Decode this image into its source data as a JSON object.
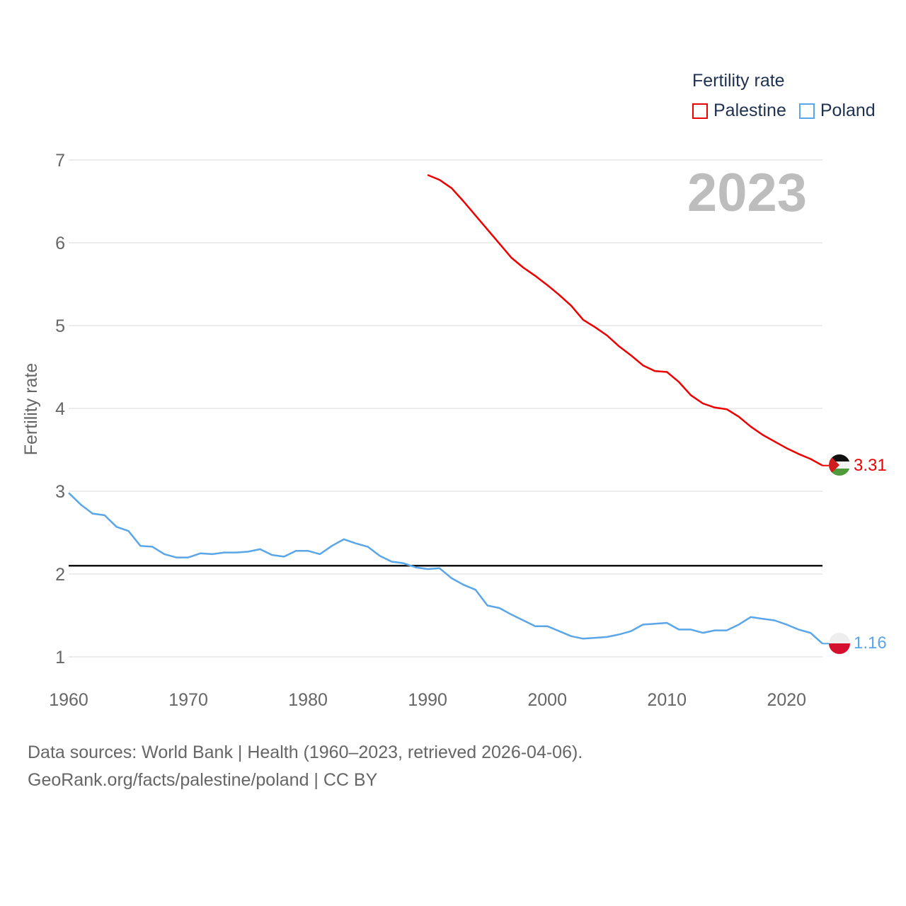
{
  "legend": {
    "title": "Fertility rate",
    "items": [
      {
        "label": "Palestine",
        "color": "#ee0000"
      },
      {
        "label": "Poland",
        "color": "#5aa6e8"
      }
    ]
  },
  "source": {
    "line1": "Data sources: World Bank | Health (1960–2023, retrieved 2026-04-06).",
    "line2": "GeoRank.org/facts/palestine/poland | CC BY"
  },
  "chart_data": {
    "type": "line",
    "title": "Fertility rate",
    "year_label": "2023",
    "ylabel": "Fertility rate",
    "xlabel": "",
    "xlim": [
      1960,
      2023
    ],
    "ylim": [
      0.8,
      7.2
    ],
    "x_ticks": [
      1960,
      1970,
      1980,
      1990,
      2000,
      2010,
      2020
    ],
    "y_ticks": [
      1,
      2,
      3,
      4,
      5,
      6,
      7
    ],
    "reference_line": 2.1,
    "series": [
      {
        "name": "Palestine",
        "color": "#ee0000",
        "end_label": "3.31",
        "points": [
          [
            1990,
            6.82
          ],
          [
            1991,
            6.76
          ],
          [
            1992,
            6.66
          ],
          [
            1993,
            6.5
          ],
          [
            1994,
            6.33
          ],
          [
            1995,
            6.16
          ],
          [
            1996,
            5.99
          ],
          [
            1997,
            5.82
          ],
          [
            1998,
            5.7
          ],
          [
            1999,
            5.6
          ],
          [
            2000,
            5.49
          ],
          [
            2001,
            5.37
          ],
          [
            2002,
            5.24
          ],
          [
            2003,
            5.07
          ],
          [
            2004,
            4.98
          ],
          [
            2005,
            4.88
          ],
          [
            2006,
            4.75
          ],
          [
            2007,
            4.64
          ],
          [
            2008,
            4.52
          ],
          [
            2009,
            4.45
          ],
          [
            2010,
            4.44
          ],
          [
            2011,
            4.32
          ],
          [
            2012,
            4.16
          ],
          [
            2013,
            4.06
          ],
          [
            2014,
            4.01
          ],
          [
            2015,
            3.99
          ],
          [
            2016,
            3.9
          ],
          [
            2017,
            3.78
          ],
          [
            2018,
            3.68
          ],
          [
            2019,
            3.6
          ],
          [
            2020,
            3.52
          ],
          [
            2021,
            3.45
          ],
          [
            2022,
            3.39
          ],
          [
            2023,
            3.31
          ]
        ]
      },
      {
        "name": "Poland",
        "color": "#5aa6e8",
        "end_label": "1.16",
        "points": [
          [
            1960,
            2.98
          ],
          [
            1961,
            2.84
          ],
          [
            1962,
            2.73
          ],
          [
            1963,
            2.71
          ],
          [
            1964,
            2.57
          ],
          [
            1965,
            2.52
          ],
          [
            1966,
            2.34
          ],
          [
            1967,
            2.33
          ],
          [
            1968,
            2.24
          ],
          [
            1969,
            2.2
          ],
          [
            1970,
            2.2
          ],
          [
            1971,
            2.25
          ],
          [
            1972,
            2.24
          ],
          [
            1973,
            2.26
          ],
          [
            1974,
            2.26
          ],
          [
            1975,
            2.27
          ],
          [
            1976,
            2.3
          ],
          [
            1977,
            2.23
          ],
          [
            1978,
            2.21
          ],
          [
            1979,
            2.28
          ],
          [
            1980,
            2.28
          ],
          [
            1981,
            2.24
          ],
          [
            1982,
            2.34
          ],
          [
            1983,
            2.42
          ],
          [
            1984,
            2.37
          ],
          [
            1985,
            2.33
          ],
          [
            1986,
            2.22
          ],
          [
            1987,
            2.15
          ],
          [
            1988,
            2.13
          ],
          [
            1989,
            2.08
          ],
          [
            1990,
            2.06
          ],
          [
            1991,
            2.07
          ],
          [
            1992,
            1.95
          ],
          [
            1993,
            1.87
          ],
          [
            1994,
            1.81
          ],
          [
            1995,
            1.62
          ],
          [
            1996,
            1.59
          ],
          [
            1997,
            1.51
          ],
          [
            1998,
            1.44
          ],
          [
            1999,
            1.37
          ],
          [
            2000,
            1.37
          ],
          [
            2001,
            1.31
          ],
          [
            2002,
            1.25
          ],
          [
            2003,
            1.22
          ],
          [
            2004,
            1.23
          ],
          [
            2005,
            1.24
          ],
          [
            2006,
            1.27
          ],
          [
            2007,
            1.31
          ],
          [
            2008,
            1.39
          ],
          [
            2009,
            1.4
          ],
          [
            2010,
            1.41
          ],
          [
            2011,
            1.33
          ],
          [
            2012,
            1.33
          ],
          [
            2013,
            1.29
          ],
          [
            2014,
            1.32
          ],
          [
            2015,
            1.32
          ],
          [
            2016,
            1.39
          ],
          [
            2017,
            1.48
          ],
          [
            2018,
            1.46
          ],
          [
            2019,
            1.44
          ],
          [
            2020,
            1.39
          ],
          [
            2021,
            1.33
          ],
          [
            2022,
            1.29
          ],
          [
            2023,
            1.16
          ]
        ]
      }
    ]
  }
}
